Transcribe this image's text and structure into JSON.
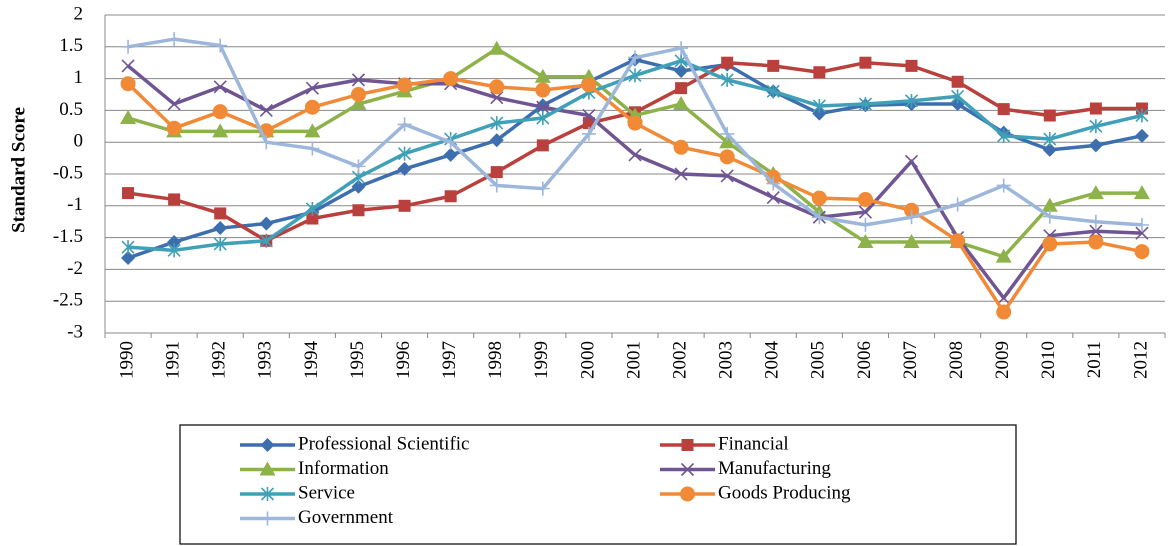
{
  "chart_data": {
    "type": "line",
    "y_label": "Standard Score",
    "categories": [
      "1990",
      "1991",
      "1992",
      "1993",
      "1994",
      "1995",
      "1996",
      "1997",
      "1998",
      "1999",
      "2000",
      "2001",
      "2002",
      "2003",
      "2004",
      "2005",
      "2006",
      "2007",
      "2008",
      "2009",
      "2010",
      "2011",
      "2012"
    ],
    "ylim": [
      -3,
      2
    ],
    "yticks": [
      2,
      1.5,
      1,
      0.5,
      0,
      -0.5,
      -1,
      -1.5,
      -2,
      -2.5,
      -3
    ],
    "grid": true,
    "legend": "bottom",
    "series": [
      {
        "name": "Professional Scientific",
        "color": "#3d6fae",
        "marker": "diamond",
        "values": [
          -1.82,
          -1.57,
          -1.35,
          -1.28,
          -1.1,
          -0.7,
          -0.42,
          -0.2,
          0.03,
          0.58,
          0.95,
          1.3,
          1.12,
          1.22,
          0.8,
          0.45,
          0.58,
          0.6,
          0.6,
          0.15,
          -0.12,
          -0.05,
          0.1
        ]
      },
      {
        "name": "Financial",
        "color": "#b9403d",
        "marker": "square",
        "values": [
          -0.8,
          -0.9,
          -1.12,
          -1.55,
          -1.2,
          -1.07,
          -1.0,
          -0.85,
          -0.47,
          -0.05,
          0.3,
          0.47,
          0.85,
          1.25,
          1.2,
          1.1,
          1.25,
          1.2,
          0.95,
          0.52,
          0.42,
          0.53,
          0.53
        ]
      },
      {
        "name": "Information",
        "color": "#8db24a",
        "marker": "triangle",
        "values": [
          0.38,
          0.17,
          0.17,
          0.17,
          0.17,
          0.6,
          0.8,
          1.0,
          1.47,
          1.03,
          1.03,
          0.42,
          0.6,
          0.0,
          -0.5,
          -1.1,
          -1.57,
          -1.57,
          -1.57,
          -1.8,
          -1.0,
          -0.8,
          -0.8
        ]
      },
      {
        "name": "Manufacturing",
        "color": "#6f5592",
        "marker": "x",
        "values": [
          1.2,
          0.6,
          0.87,
          0.5,
          0.85,
          0.98,
          0.92,
          0.92,
          0.7,
          0.55,
          0.42,
          -0.2,
          -0.5,
          -0.53,
          -0.87,
          -1.18,
          -1.1,
          -0.3,
          -1.5,
          -2.45,
          -1.47,
          -1.4,
          -1.43
        ]
      },
      {
        "name": "Service",
        "color": "#3fa0b8",
        "marker": "asterisk",
        "values": [
          -1.65,
          -1.7,
          -1.6,
          -1.55,
          -1.05,
          -0.55,
          -0.18,
          0.05,
          0.3,
          0.38,
          0.78,
          1.05,
          1.28,
          0.98,
          0.8,
          0.57,
          0.6,
          0.65,
          0.72,
          0.1,
          0.05,
          0.25,
          0.42
        ]
      },
      {
        "name": "Goods Producing",
        "color": "#f08a37",
        "marker": "circle",
        "values": [
          0.92,
          0.22,
          0.48,
          0.18,
          0.55,
          0.75,
          0.9,
          1.0,
          0.87,
          0.82,
          0.9,
          0.3,
          -0.08,
          -0.23,
          -0.55,
          -0.88,
          -0.9,
          -1.07,
          -1.55,
          -2.67,
          -1.6,
          -1.57,
          -1.72
        ]
      },
      {
        "name": "Government",
        "color": "#9db7db",
        "marker": "plus",
        "values": [
          1.5,
          1.62,
          1.52,
          0.0,
          -0.1,
          -0.38,
          0.28,
          0.0,
          -0.68,
          -0.73,
          0.13,
          1.33,
          1.48,
          0.13,
          -0.65,
          -1.18,
          -1.3,
          -1.18,
          -0.98,
          -0.68,
          -1.17,
          -1.25,
          -1.3
        ]
      }
    ]
  }
}
